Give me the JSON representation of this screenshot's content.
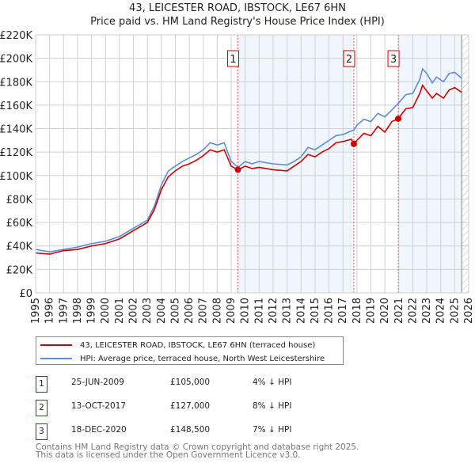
{
  "chart_data": {
    "type": "line",
    "title": "43, LEICESTER ROAD, IBSTOCK, LE67 6HN",
    "subtitle": "Price paid vs. HM Land Registry's House Price Index (HPI)",
    "xlim": [
      1995,
      2026
    ],
    "ylim": [
      0,
      220000
    ],
    "x_ticks": [
      "1995",
      "1996",
      "1997",
      "1998",
      "1999",
      "2000",
      "2001",
      "2002",
      "2003",
      "2004",
      "2005",
      "2006",
      "2007",
      "2008",
      "2009",
      "2010",
      "2011",
      "2012",
      "2013",
      "2014",
      "2015",
      "2016",
      "2017",
      "2018",
      "2019",
      "2020",
      "2021",
      "2022",
      "2023",
      "2024",
      "2025",
      "2026"
    ],
    "y_ticks": [
      "£0",
      "£20K",
      "£40K",
      "£60K",
      "£80K",
      "£100K",
      "£120K",
      "£140K",
      "£160K",
      "£180K",
      "£200K",
      "£220K"
    ],
    "grid": true,
    "series": [
      {
        "name": "43, LEICESTER ROAD, IBSTOCK, LE67 6HN (terraced house)",
        "color": "#cc0000",
        "x": [
          1995,
          1996,
          1997,
          1998,
          1999,
          2000,
          2001,
          2002,
          2003,
          2003.5,
          2004,
          2004.5,
          2005,
          2005.5,
          2006,
          2006.5,
          2007,
          2007.5,
          2008,
          2008.5,
          2009,
          2009.48,
          2010,
          2010.5,
          2011,
          2012,
          2013,
          2013.5,
          2014,
          2014.5,
          2015,
          2015.5,
          2016,
          2016.5,
          2017,
          2017.6,
          2017.78,
          2018,
          2018.5,
          2019,
          2019.5,
          2020,
          2020.5,
          2020.96,
          2021.5,
          2022,
          2022.5,
          2022.7,
          2023,
          2023.4,
          2023.7,
          2024.2,
          2024.6,
          2025,
          2025.5
        ],
        "y": [
          34,
          33,
          36,
          37,
          40,
          42,
          46,
          53,
          60,
          71,
          88,
          99,
          104,
          108,
          110,
          113,
          117,
          122,
          120,
          122,
          108,
          105,
          108,
          106,
          107,
          105,
          104,
          108,
          112,
          118,
          116,
          120,
          123,
          128,
          129,
          131,
          127,
          130,
          136,
          134,
          142,
          137,
          146,
          148.5,
          157,
          158,
          170,
          177,
          172,
          166,
          170,
          166,
          173,
          175,
          171
        ]
      },
      {
        "name": "HPI: Average price, terraced house, North West Leicestershire",
        "color": "#5b8fd4",
        "x": [
          1995,
          1996,
          1997,
          1998,
          1999,
          2000,
          2001,
          2002,
          2003,
          2003.5,
          2004,
          2004.5,
          2005,
          2005.5,
          2006,
          2006.5,
          2007,
          2007.5,
          2008,
          2008.5,
          2009,
          2009.5,
          2010,
          2010.5,
          2011,
          2012,
          2013,
          2013.5,
          2014,
          2014.5,
          2015,
          2015.5,
          2016,
          2016.5,
          2017,
          2017.8,
          2018,
          2018.5,
          2019,
          2019.5,
          2020,
          2020.5,
          2021,
          2021.5,
          2022,
          2022.5,
          2022.7,
          2023,
          2023.4,
          2023.7,
          2024.2,
          2024.6,
          2025,
          2025.5
        ],
        "y": [
          37,
          35,
          37,
          39,
          42,
          44,
          48,
          55,
          62,
          74,
          92,
          104,
          108,
          112,
          115,
          118,
          122,
          128,
          126,
          128,
          112,
          107,
          112,
          110,
          112,
          110,
          109,
          112,
          116,
          124,
          122,
          126,
          130,
          134,
          135,
          139,
          143,
          148,
          146,
          153,
          150,
          156,
          162,
          169,
          170,
          182,
          191,
          187,
          179,
          184,
          180,
          187,
          188,
          183
        ]
      }
    ],
    "y_unit": "thousands GBP",
    "shaded_ranges": [
      [
        2009.48,
        2017.78
      ],
      [
        2020.96,
        2025.5
      ]
    ],
    "hatched_from": 2025.5,
    "markers": [
      {
        "label": "1",
        "x": 2009.48,
        "y": 105
      },
      {
        "label": "2",
        "x": 2017.78,
        "y": 127
      },
      {
        "label": "3",
        "x": 2020.96,
        "y": 148.5
      }
    ]
  },
  "legend": {
    "property": "43, LEICESTER ROAD, IBSTOCK, LE67 6HN (terraced house)",
    "hpi": "HPI: Average price, terraced house, North West Leicestershire"
  },
  "sales": [
    {
      "num": "1",
      "date": "25-JUN-2009",
      "price": "£105,000",
      "hpi": "4% ↓ HPI"
    },
    {
      "num": "2",
      "date": "13-OCT-2017",
      "price": "£127,000",
      "hpi": "8% ↓ HPI"
    },
    {
      "num": "3",
      "date": "18-DEC-2020",
      "price": "£148,500",
      "hpi": "7% ↓ HPI"
    }
  ],
  "footer": {
    "line1": "Contains HM Land Registry data © Crown copyright and database right 2025.",
    "line2": "This data is licensed under the Open Government Licence v3.0."
  }
}
